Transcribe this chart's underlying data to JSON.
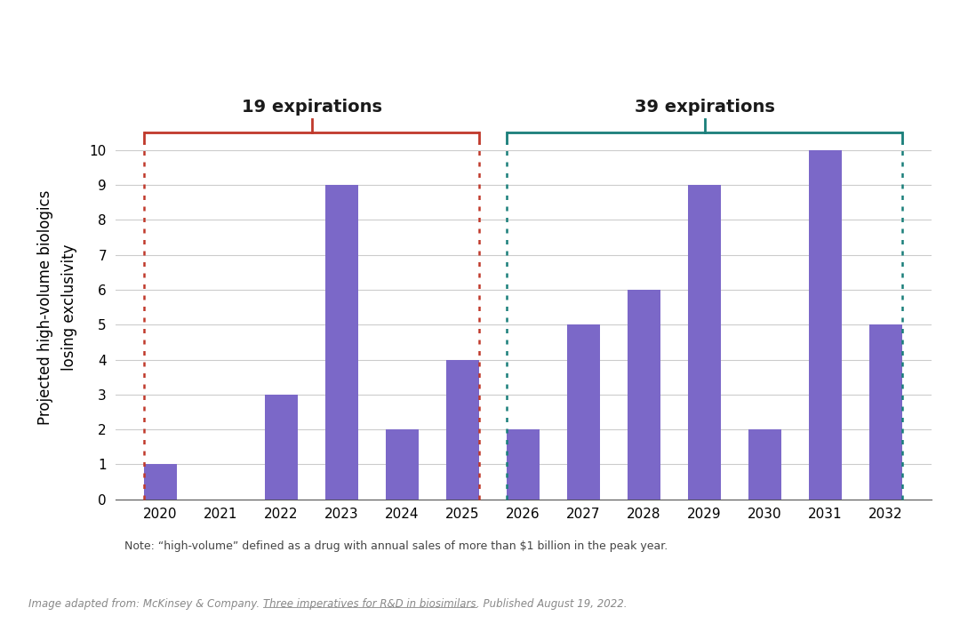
{
  "years": [
    2020,
    2021,
    2022,
    2023,
    2024,
    2025,
    2026,
    2027,
    2028,
    2029,
    2030,
    2031,
    2032
  ],
  "values": [
    1,
    0,
    3,
    9,
    2,
    4,
    2,
    5,
    6,
    9,
    2,
    10,
    5
  ],
  "bar_color": "#7B68C8",
  "background_color": "#FFFFFF",
  "ylabel": "Projected high-volume biologics\nlosing exclusivity",
  "ylim": [
    0,
    11
  ],
  "yticks": [
    0,
    1,
    2,
    3,
    4,
    5,
    6,
    7,
    8,
    9,
    10
  ],
  "group1_label": "19 expirations",
  "group2_label": "39 expirations",
  "group1_color": "#C0392B",
  "group2_color": "#1A7F7A",
  "note_text": "Note: “high-volume” defined as a drug with annual sales of more than $1 billion in the peak year.",
  "source_text_prefix": "Image adapted from: McKinsey & Company. ",
  "source_text_link": "Three imperatives for R&D in biosimilars",
  "source_text_suffix": ". Published August 19, 2022.",
  "tick_label_fontsize": 11,
  "ylabel_fontsize": 12,
  "annotation_fontsize": 14,
  "note_fontsize": 9,
  "source_fontsize": 8.5
}
